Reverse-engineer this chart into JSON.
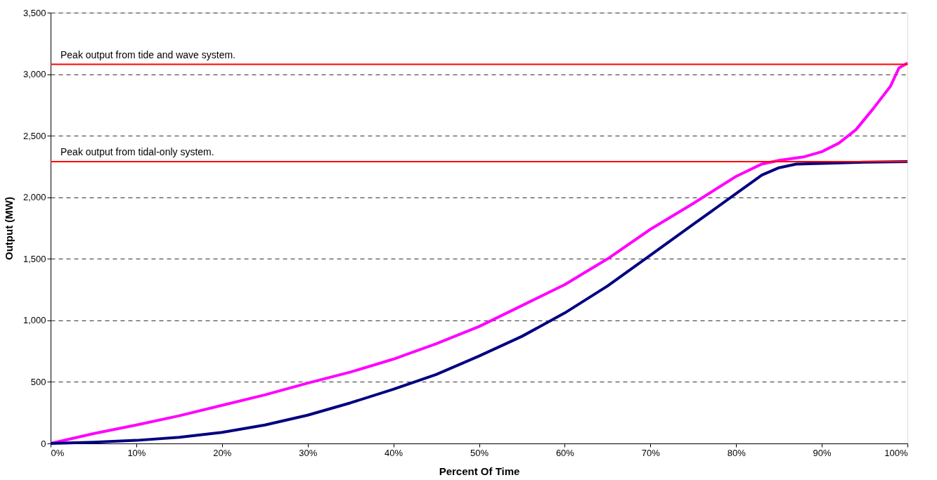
{
  "chart_data": {
    "type": "line",
    "xlabel": "Percent Of Time",
    "ylabel": "Output (MW)",
    "xlim": [
      0,
      100
    ],
    "ylim": [
      0,
      3500
    ],
    "xticks": [
      {
        "value": 0,
        "label": "0%"
      },
      {
        "value": 10,
        "label": "10%"
      },
      {
        "value": 20,
        "label": "20%"
      },
      {
        "value": 30,
        "label": "30%"
      },
      {
        "value": 40,
        "label": "40%"
      },
      {
        "value": 50,
        "label": "50%"
      },
      {
        "value": 60,
        "label": "60%"
      },
      {
        "value": 70,
        "label": "70%"
      },
      {
        "value": 80,
        "label": "80%"
      },
      {
        "value": 90,
        "label": "90%"
      },
      {
        "value": 100,
        "label": "100%"
      }
    ],
    "yticks": [
      {
        "value": 0,
        "label": "0"
      },
      {
        "value": 500,
        "label": "500"
      },
      {
        "value": 1000,
        "label": "1,000"
      },
      {
        "value": 1500,
        "label": "1,500"
      },
      {
        "value": 2000,
        "label": "2,000"
      },
      {
        "value": 2500,
        "label": "2,500"
      },
      {
        "value": 3000,
        "label": "3,000"
      },
      {
        "value": 3500,
        "label": "3,500"
      }
    ],
    "grid": "y",
    "marker": "none",
    "line_style": "solid",
    "series": [
      {
        "color": "#ff00ff",
        "x": [
          0,
          5,
          10,
          15,
          20,
          25,
          30,
          35,
          40,
          45,
          50,
          55,
          60,
          65,
          70,
          75,
          80,
          83,
          85,
          88,
          90,
          92,
          94,
          96,
          98,
          99,
          100
        ],
        "values": [
          0,
          80,
          150,
          225,
          310,
          395,
          490,
          580,
          685,
          810,
          950,
          1120,
          1290,
          1500,
          1740,
          1950,
          2170,
          2270,
          2300,
          2330,
          2370,
          2440,
          2550,
          2720,
          2900,
          3050,
          3090
        ]
      },
      {
        "color": "#000080",
        "x": [
          0,
          5,
          10,
          15,
          20,
          25,
          30,
          35,
          40,
          45,
          50,
          55,
          60,
          65,
          70,
          75,
          80,
          83,
          85,
          87,
          90,
          95,
          100
        ],
        "values": [
          0,
          10,
          25,
          50,
          90,
          150,
          230,
          330,
          440,
          560,
          710,
          870,
          1060,
          1280,
          1530,
          1780,
          2030,
          2180,
          2240,
          2270,
          2275,
          2285,
          2290
        ]
      }
    ],
    "ref_lines": [
      {
        "axis": "y",
        "value": 3080,
        "label": "Peak output from tide and wave system.",
        "color": "#ff0000"
      },
      {
        "axis": "y",
        "value": 2290,
        "label": "Peak output from tidal-only system.",
        "color": "#ff0000"
      }
    ]
  }
}
